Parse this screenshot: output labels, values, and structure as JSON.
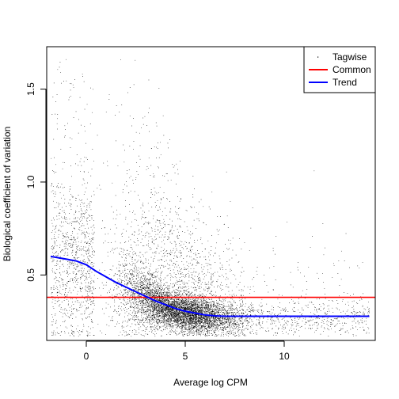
{
  "chart_data": {
    "type": "scatter",
    "xlabel": "Average log CPM",
    "ylabel": "Biological coefficient of variation",
    "xlim": [
      -2.0,
      14.6
    ],
    "ylim": [
      0.148,
      1.728
    ],
    "x_ticks": [
      0,
      5,
      10
    ],
    "y_ticks": [
      0.5,
      1.0,
      1.5
    ],
    "x_tick_labels": [
      "0",
      "5",
      "10"
    ],
    "y_tick_labels": [
      "0.5",
      "1.0",
      "1.5"
    ],
    "grid": false,
    "legend_position": "top-right",
    "legend": [
      {
        "label": "Tagwise",
        "symbol": "dot",
        "color": "#000000"
      },
      {
        "label": "Common",
        "symbol": "line",
        "color": "#ff0000"
      },
      {
        "label": "Trend",
        "symbol": "line",
        "color": "#0000ff"
      }
    ],
    "series": [
      {
        "name": "Tagwise",
        "kind": "points",
        "color": "#000000",
        "description_points": "approx. 10000 gene-wise BCV estimates; densest at logCPM 2-8 with BCV 0.2-0.4, spreading upward to ~1.6 at low logCPM"
      },
      {
        "name": "Common",
        "kind": "hline",
        "color": "#ff0000",
        "y": 0.38,
        "x": [
          -2.0,
          14.6
        ]
      },
      {
        "name": "Trend",
        "kind": "line",
        "color": "#0000ff",
        "x": [
          -1.8,
          -1.0,
          -0.5,
          0.0,
          0.5,
          1.0,
          1.5,
          2.0,
          2.5,
          3.0,
          3.5,
          4.0,
          4.5,
          5.0,
          5.5,
          6.0,
          6.5,
          7.0,
          7.5,
          8.0,
          9.0,
          10.0,
          11.0,
          12.0,
          13.0,
          14.3
        ],
        "y": [
          0.6,
          0.585,
          0.575,
          0.555,
          0.52,
          0.49,
          0.46,
          0.435,
          0.41,
          0.385,
          0.36,
          0.34,
          0.32,
          0.305,
          0.295,
          0.285,
          0.28,
          0.278,
          0.278,
          0.278,
          0.278,
          0.278,
          0.278,
          0.278,
          0.278,
          0.278
        ]
      }
    ]
  }
}
